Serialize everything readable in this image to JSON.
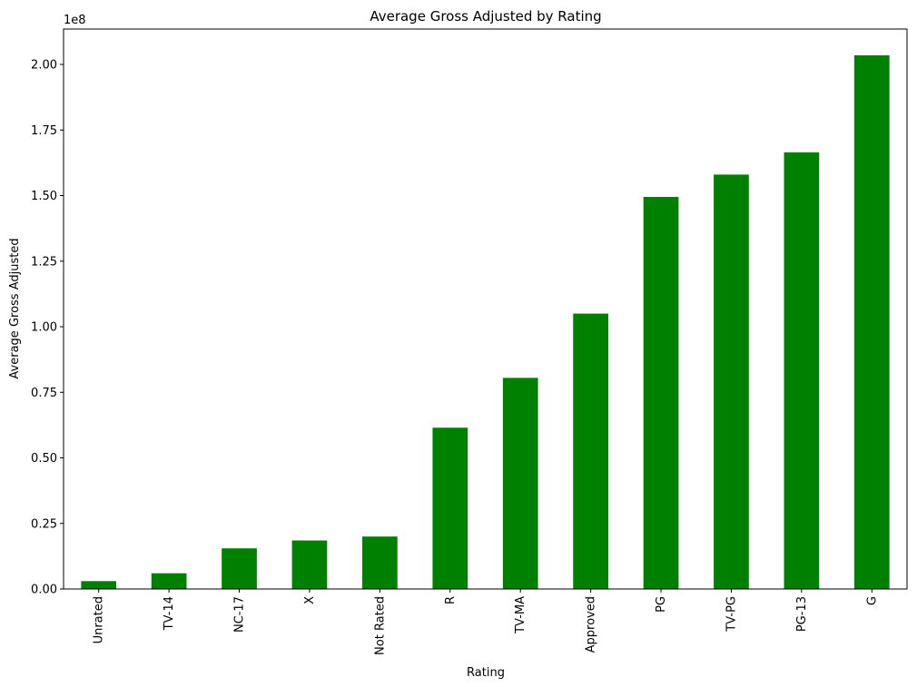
{
  "chart_data": {
    "type": "bar",
    "title": "Average Gross Adjusted by Rating",
    "xlabel": "Rating",
    "ylabel": "Average Gross Adjusted",
    "y_scale_label": "1e8",
    "categories": [
      "Unrated",
      "TV-14",
      "NC-17",
      "X",
      "Not Rated",
      "R",
      "TV-MA",
      "Approved",
      "PG",
      "TV-PG",
      "PG-13",
      "G"
    ],
    "values": [
      3000000,
      6000000,
      15500000,
      18500000,
      20000000,
      61500000,
      80500000,
      105000000,
      149500000,
      158000000,
      166500000,
      203500000
    ],
    "ylim": [
      0,
      213500000
    ],
    "yticks": [
      0,
      25000000,
      50000000,
      75000000,
      100000000,
      125000000,
      150000000,
      175000000,
      200000000
    ],
    "ytick_labels": [
      "0.00",
      "0.25",
      "0.50",
      "0.75",
      "1.00",
      "1.25",
      "1.50",
      "1.75",
      "2.00"
    ],
    "grid": false,
    "legend": "none",
    "bar_color": "#008000"
  }
}
